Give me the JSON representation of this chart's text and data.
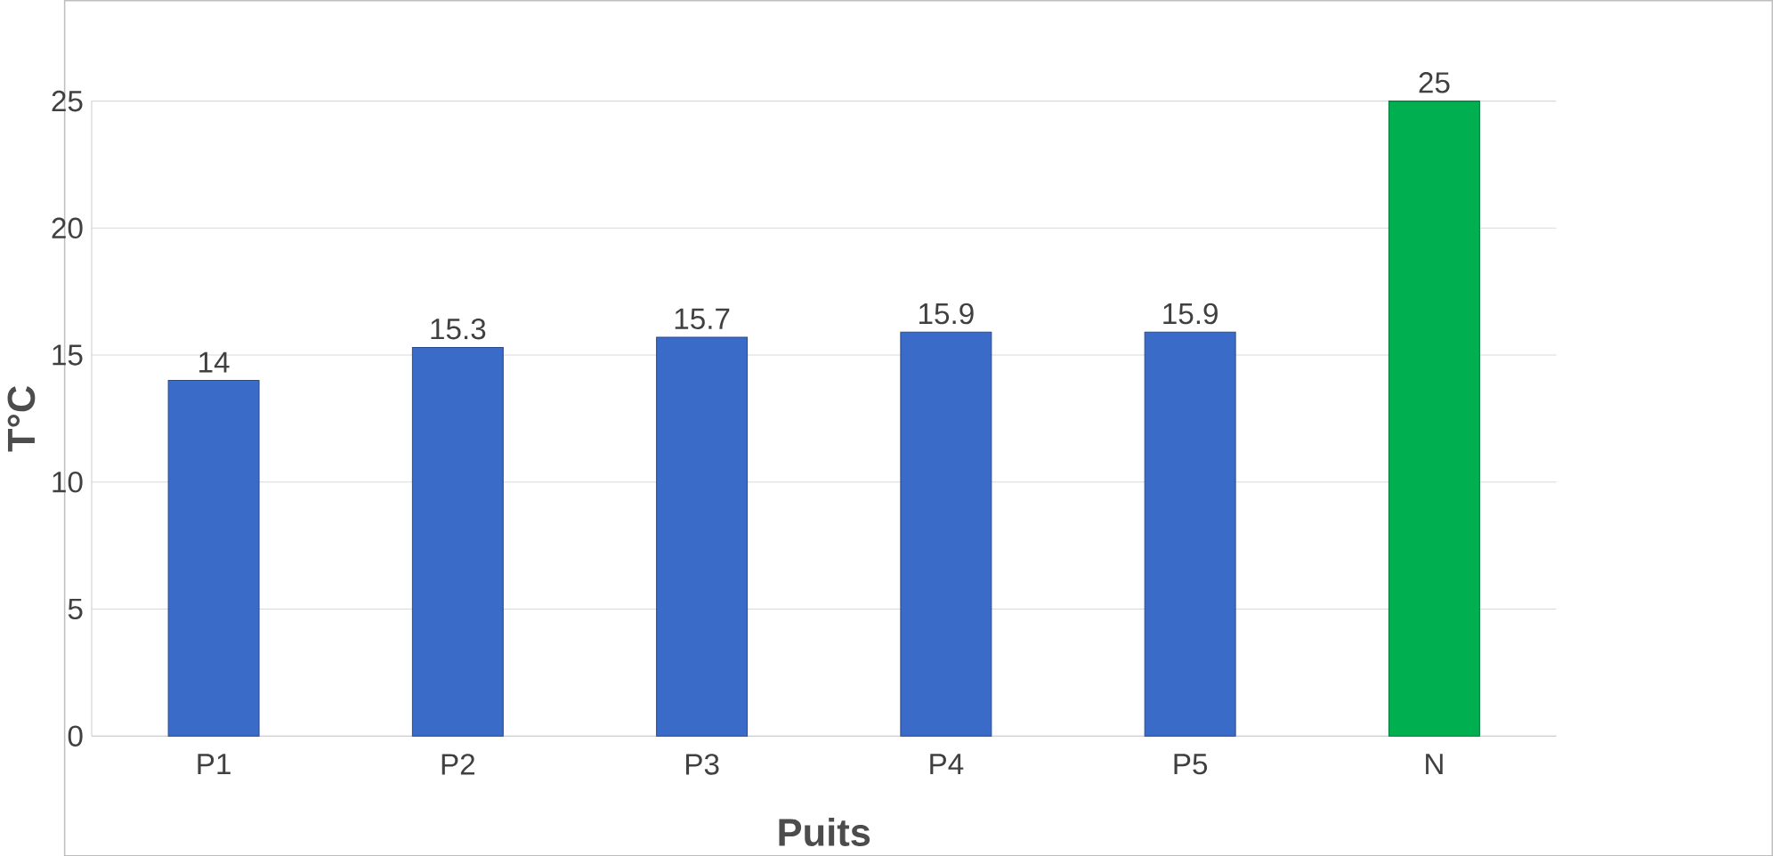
{
  "chart_data": {
    "type": "bar",
    "xlabel": "Puits",
    "ylabel": "T°C",
    "categories": [
      "P1",
      "P2",
      "P3",
      "P4",
      "P5",
      "N"
    ],
    "values": [
      14,
      15.3,
      15.7,
      15.9,
      15.9,
      25
    ],
    "colors": [
      "#3a6bc8",
      "#3a6bc8",
      "#3a6bc8",
      "#3a6bc8",
      "#3a6bc8",
      "#00b050"
    ],
    "ylim": [
      0,
      25
    ],
    "yticks": [
      0,
      5,
      10,
      15,
      20,
      25
    ],
    "grid": "y",
    "data_labels": true
  }
}
